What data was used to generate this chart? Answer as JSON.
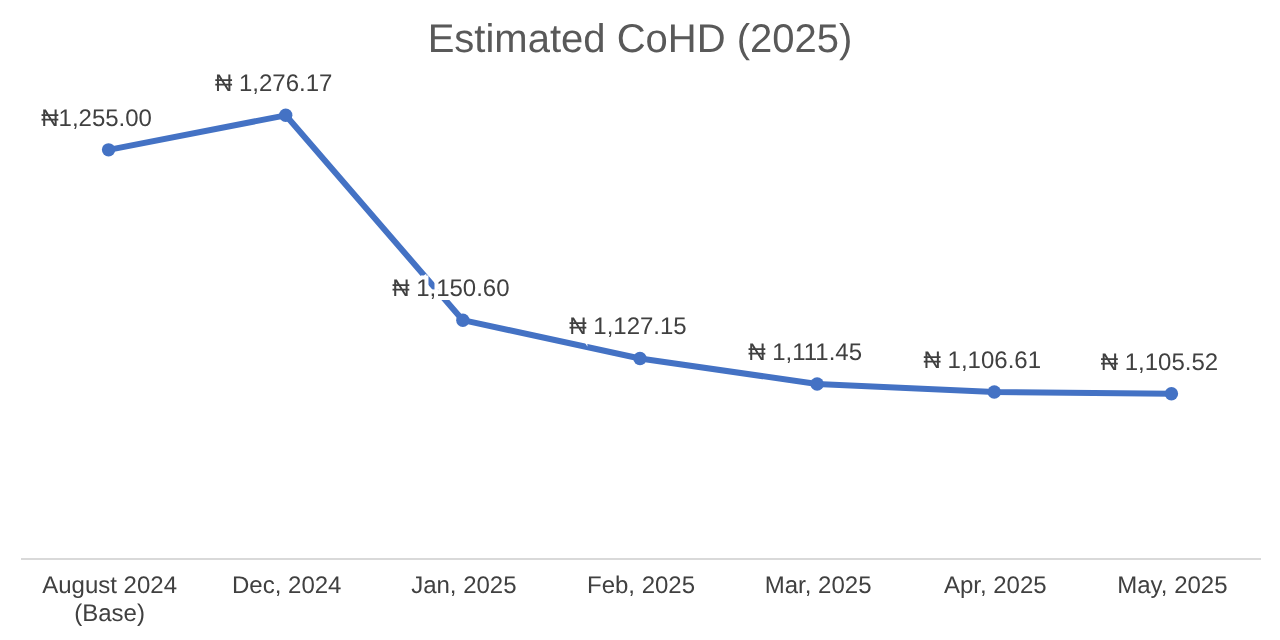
{
  "chart_data": {
    "type": "line",
    "title": "Estimated CoHD (2025)",
    "categories": [
      "August 2024 (Base)",
      "Dec, 2024",
      "Jan, 2025",
      "Feb, 2025",
      "Mar, 2025",
      "Apr, 2025",
      "May, 2025"
    ],
    "series": [
      {
        "color": "#4472c4",
        "values": [
          1255.0,
          1276.17,
          1150.6,
          1127.15,
          1111.45,
          1106.61,
          1105.52
        ],
        "value_labels": [
          "₦1,255.00",
          "₦ 1,276.17",
          "₦ 1,150.60",
          "₦ 1,127.15",
          "₦ 1,111.45",
          "₦ 1,106.61",
          "₦ 1,105.52"
        ]
      }
    ],
    "marker": "circle",
    "line_style": "solid",
    "grid": false,
    "tick_labels": "x"
  }
}
